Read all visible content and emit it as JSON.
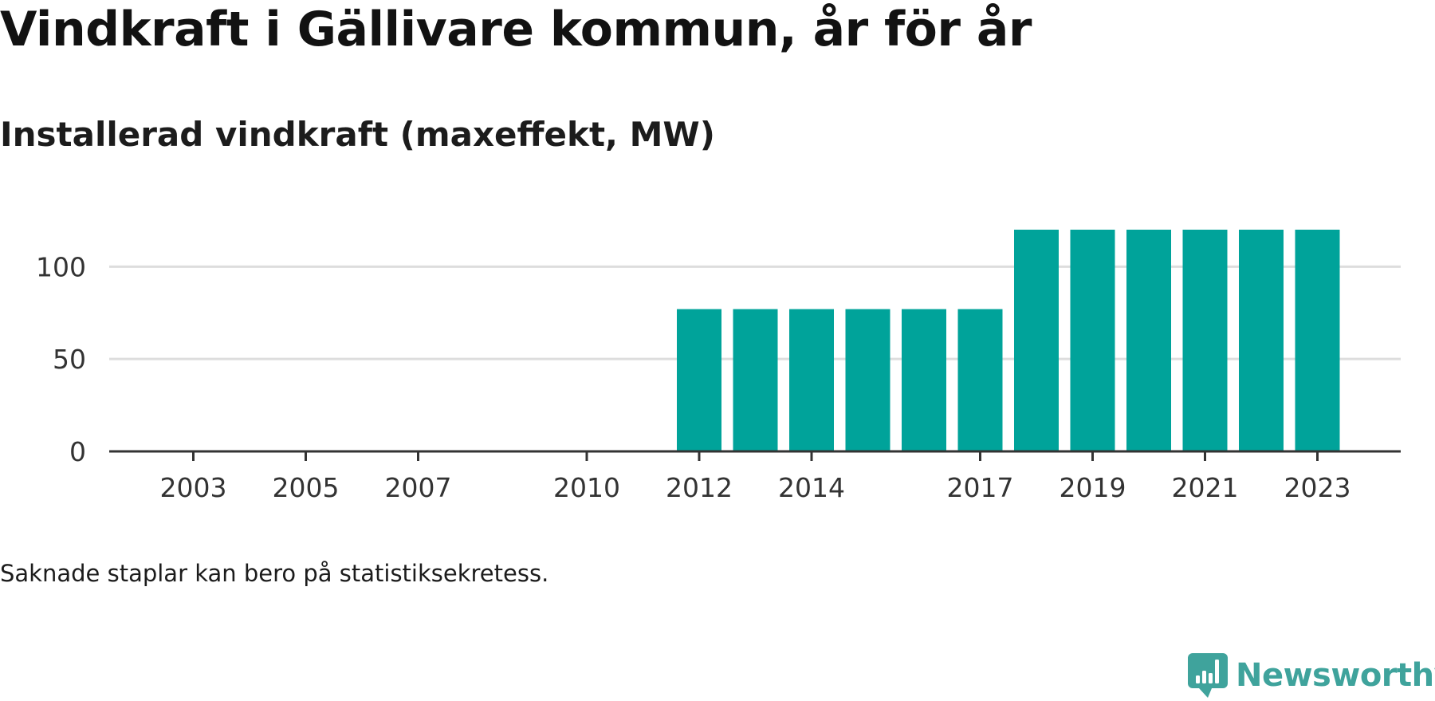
{
  "title": "Vindkraft i Gällivare kommun, år för år",
  "subtitle": "Installerad vindkraft (maxeffekt, MW)",
  "note": "Saknade staplar kan bero på statistiksekretess.",
  "brand": {
    "name": "Newsworthy",
    "icon": "newsworthy-chat-bars-icon",
    "color": "#3fa39c"
  },
  "chart_data": {
    "type": "bar",
    "title": "Vindkraft i Gällivare kommun, år för år",
    "subtitle": "Installerad vindkraft (maxeffekt, MW)",
    "xlabel": "",
    "ylabel": "",
    "categories": [
      2002,
      2003,
      2004,
      2005,
      2006,
      2007,
      2008,
      2009,
      2010,
      2011,
      2012,
      2013,
      2014,
      2015,
      2016,
      2017,
      2018,
      2019,
      2020,
      2021,
      2022,
      2023
    ],
    "values": [
      0,
      0,
      0,
      0,
      0,
      0,
      0,
      0,
      0,
      0,
      77,
      77,
      77,
      77,
      77,
      77,
      120,
      120,
      120,
      120,
      120,
      120
    ],
    "x_tick_labels": [
      "2003",
      "2005",
      "2007",
      "2010",
      "2012",
      "2014",
      "2017",
      "2019",
      "2021",
      "2023"
    ],
    "y_ticks": [
      0,
      50,
      100
    ],
    "ylim": [
      0,
      120
    ],
    "grid": true,
    "bar_color": "#00a39a",
    "grid_color": "#dddddd",
    "axis_color": "#333333"
  }
}
